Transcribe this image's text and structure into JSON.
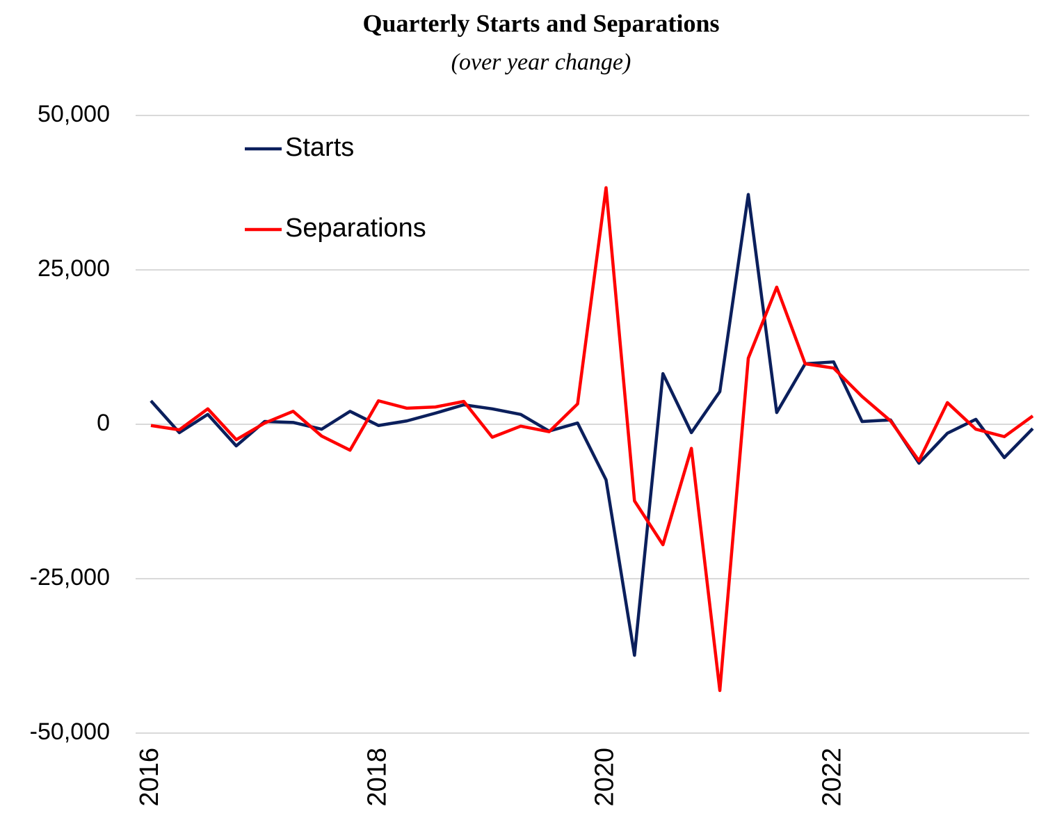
{
  "chart_data": {
    "type": "line",
    "title": "Quarterly Starts and Separations",
    "subtitle": "(over year change)",
    "categories": [
      "2016",
      null,
      null,
      null,
      null,
      null,
      null,
      null,
      "2018",
      null,
      null,
      null,
      null,
      null,
      null,
      null,
      "2020",
      null,
      null,
      null,
      null,
      null,
      null,
      null,
      "2022",
      null,
      null,
      null,
      null,
      null,
      null,
      null
    ],
    "series": [
      {
        "name": "Starts",
        "color": "#0b1f5c",
        "values": [
          3800,
          -1350,
          1600,
          -3500,
          450,
          300,
          -800,
          2100,
          -200,
          550,
          1800,
          3150,
          2500,
          1600,
          -1100,
          200,
          -9000,
          -37400,
          8200,
          -1350,
          5300,
          37200,
          1900,
          9800,
          10100,
          450,
          700,
          -6300,
          -1450,
          800,
          -5400,
          -700
        ]
      },
      {
        "name": "Separations",
        "color": "#ff0000",
        "values": [
          -200,
          -900,
          2500,
          -2500,
          200,
          2100,
          -1900,
          -4200,
          3800,
          2600,
          2800,
          3700,
          -2100,
          -300,
          -1200,
          3300,
          38300,
          -12400,
          -19500,
          -3900,
          -43100,
          10700,
          22200,
          9800,
          9100,
          4500,
          550,
          -5900,
          3500,
          -800,
          -2000,
          1350
        ]
      }
    ],
    "ylim": [
      -50000,
      50000
    ],
    "yticks": [
      {
        "value": -50000,
        "label": "-50,000"
      },
      {
        "value": -25000,
        "label": "-25,000"
      },
      0,
      {
        "value": 25000,
        "label": "25,000"
      },
      {
        "value": 50000,
        "label": "50,000"
      }
    ],
    "grid": true,
    "legend": "top-left"
  }
}
